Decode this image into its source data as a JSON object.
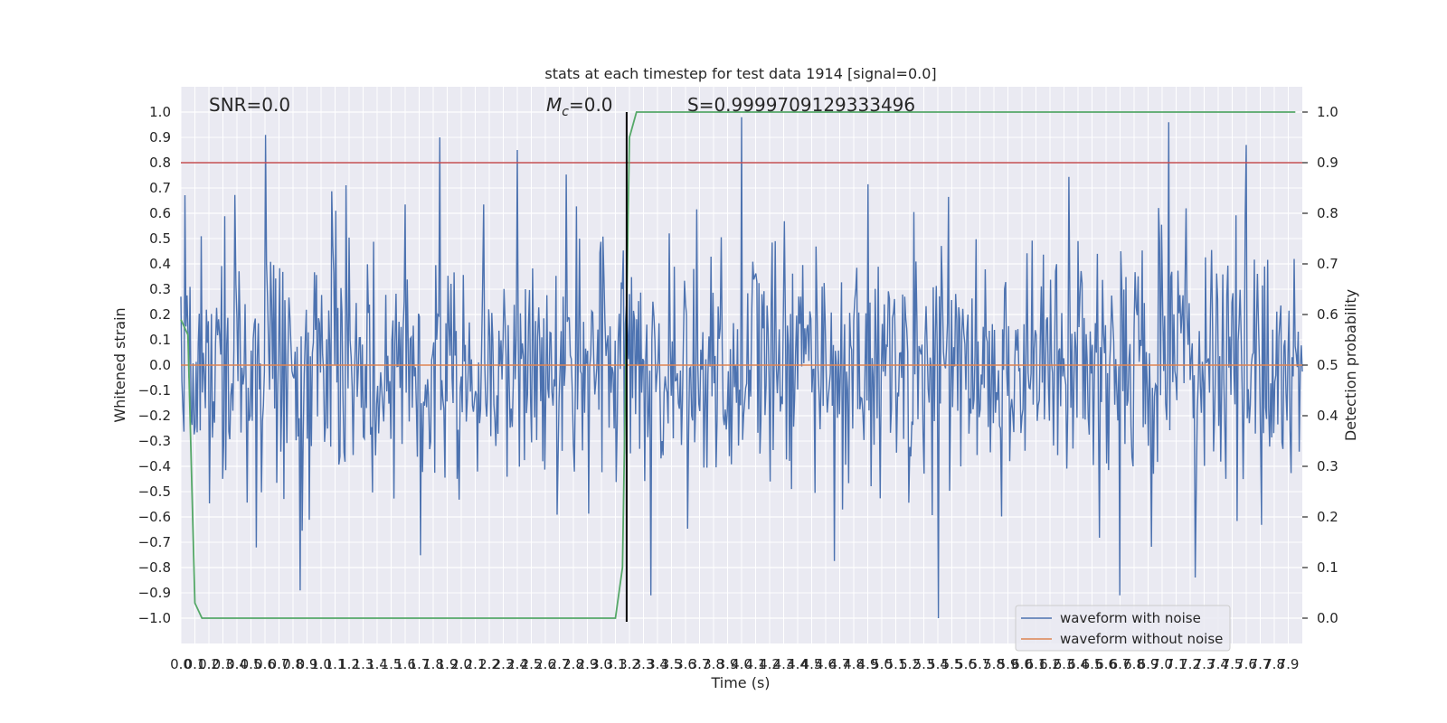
{
  "chart_data": {
    "type": "line",
    "title": "stats at each timestep for test data 1914 [signal=0.0]",
    "xlabel": "Time (s)",
    "ylabel": "Whitened strain",
    "y2label": "Detection probability",
    "xlim": [
      0.0,
      8.0
    ],
    "ylim": [
      -1.1,
      1.1
    ],
    "y2lim": [
      -0.05,
      1.05
    ],
    "x_ticks": [
      0.0,
      0.1,
      0.2,
      0.3,
      0.4,
      0.5,
      0.6,
      0.7,
      0.8,
      0.9,
      1.0,
      1.1,
      1.2,
      1.3,
      1.4,
      1.5,
      1.6,
      1.7,
      1.8,
      1.9,
      2.0,
      2.1,
      2.2,
      2.3,
      2.4,
      2.5,
      2.6,
      2.7,
      2.8,
      2.9,
      3.0,
      3.1,
      3.2,
      3.3,
      3.4,
      3.5,
      3.6,
      3.7,
      3.8,
      3.9,
      4.0,
      4.1,
      4.2,
      4.3,
      4.4,
      4.5,
      4.6,
      4.7,
      4.8,
      4.9,
      5.0,
      5.1,
      5.2,
      5.3,
      5.4,
      5.5,
      5.6,
      5.7,
      5.8,
      5.9,
      6.0,
      6.1,
      6.2,
      6.3,
      6.4,
      6.5,
      6.6,
      6.7,
      6.8,
      6.9,
      7.0,
      7.1,
      7.2,
      7.3,
      7.4,
      7.5,
      7.6,
      7.7,
      7.8,
      7.9
    ],
    "x_tick_labels": [
      "0.0",
      "0.1",
      "0.2",
      "0.3",
      "0.4",
      "0.5",
      "0.6",
      "0.7",
      "0.8",
      "0.9",
      "1.0",
      "1.1",
      "1.2",
      "1.3",
      "1.4",
      "1.5",
      "1.6",
      "1.7",
      "1.8",
      "1.9",
      "2.0",
      "2.1",
      "2.2",
      "2.3",
      "2.4",
      "2.5",
      "2.6",
      "2.7",
      "2.8",
      "2.9",
      "3.0",
      "3.1",
      "3.2",
      "3.3",
      "3.4",
      "3.5",
      "3.6",
      "3.7",
      "3.8",
      "3.9",
      "4.0",
      "4.1",
      "4.2",
      "4.3",
      "4.4",
      "4.5",
      "4.6",
      "4.7",
      "4.8",
      "4.9",
      "5.0",
      "5.1",
      "5.2",
      "5.3",
      "5.4",
      "5.5",
      "5.6",
      "5.7",
      "5.8",
      "5.9",
      "6.0",
      "6.1",
      "6.2",
      "6.3",
      "6.4",
      "6.5",
      "6.6",
      "6.7",
      "6.8",
      "6.9",
      "7.0",
      "7.1",
      "7.2",
      "7.3",
      "7.4",
      "7.5",
      "7.6",
      "7.7",
      "7.8",
      "7.9"
    ],
    "y_ticks": [
      1.0,
      0.9,
      0.8,
      0.7,
      0.6,
      0.5,
      0.4,
      0.3,
      0.2,
      0.1,
      0.0,
      -0.1,
      -0.2,
      -0.3,
      -0.4,
      -0.5,
      -0.6,
      -0.7,
      -0.8,
      -0.9,
      -1.0
    ],
    "y_tick_labels": [
      "1.0",
      "0.9",
      "0.8",
      "0.7",
      "0.6",
      "0.5",
      "0.4",
      "0.3",
      "0.2",
      "0.1",
      "0.0",
      "−0.1",
      "−0.2",
      "−0.3",
      "−0.4",
      "−0.5",
      "−0.6",
      "−0.7",
      "−0.8",
      "−0.9",
      "−1.0"
    ],
    "y2_ticks": [
      1.0,
      0.9,
      0.8,
      0.7,
      0.6,
      0.5,
      0.4,
      0.3,
      0.2,
      0.1,
      0.0
    ],
    "y2_tick_labels": [
      "1.0",
      "0.9",
      "0.8",
      "0.7",
      "0.6",
      "0.5",
      "0.4",
      "0.3",
      "0.2",
      "0.1",
      "0.0"
    ],
    "grid": true,
    "legend_position": "lower-right",
    "series": [
      {
        "name": "waveform with noise",
        "axis": "left",
        "color": "#4c72b0",
        "description": "dense whitened noise signal",
        "notable_peaks": [
          {
            "x": 0.6,
            "y": 0.91
          },
          {
            "x": 1.85,
            "y": 0.9
          },
          {
            "x": 2.4,
            "y": 0.85
          },
          {
            "x": 4.0,
            "y": 0.98
          },
          {
            "x": 7.05,
            "y": 0.96
          },
          {
            "x": 7.6,
            "y": 0.87
          },
          {
            "x": 5.4,
            "y": -1.0
          },
          {
            "x": 6.7,
            "y": -0.91
          },
          {
            "x": 0.85,
            "y": -0.89
          },
          {
            "x": 3.35,
            "y": -0.91
          }
        ]
      },
      {
        "name": "waveform without noise",
        "axis": "left",
        "color": "#dd8452",
        "x": [
          0.0,
          8.0
        ],
        "y": [
          0.0,
          0.0
        ]
      },
      {
        "axis": "right",
        "color": "#55a868",
        "x": [
          0.0,
          0.05,
          0.1,
          0.15,
          3.1,
          3.15,
          3.2,
          3.25,
          7.95
        ],
        "y": [
          0.59,
          0.56,
          0.03,
          0.0,
          0.0,
          0.1,
          0.95,
          1.0,
          1.0
        ]
      },
      {
        "axis": "right",
        "color": "#c44e52",
        "kind": "hline",
        "y": 0.9
      },
      {
        "axis": "left",
        "color": "#000000",
        "kind": "vline",
        "x": 3.18
      }
    ],
    "annotations": {
      "snr": "SNR=0.0",
      "mc_symbol": "M",
      "mc_sub": "c",
      "mc_value": "=0.0",
      "s_value": "S=0.9999709129333496"
    },
    "colors": {
      "plot_bg": "#eaeaf2",
      "grid": "#ffffff"
    }
  }
}
